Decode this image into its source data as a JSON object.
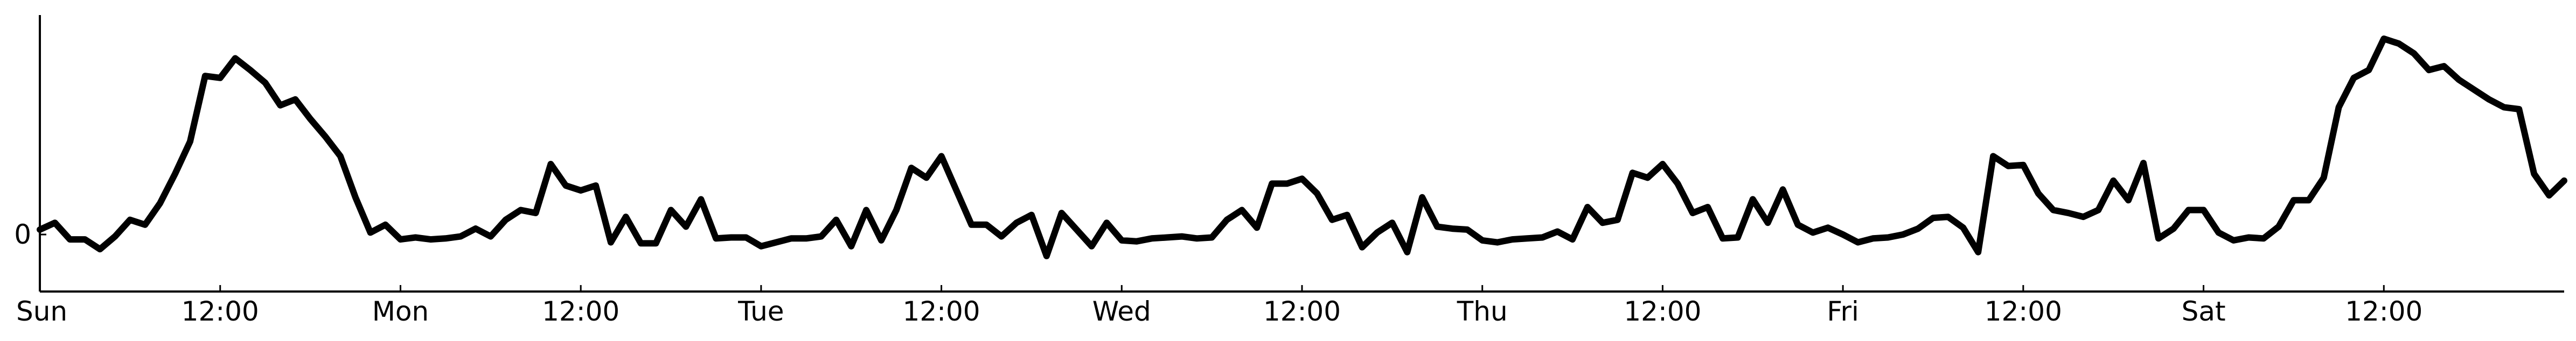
{
  "chart_data": {
    "type": "line",
    "title": "",
    "xlabel": "",
    "ylabel": "",
    "x_ticks": [
      "Sun",
      "12:00",
      "Mon",
      "12:00",
      "Tue",
      "12:00",
      "Wed",
      "12:00",
      "Thu",
      "12:00",
      "Fri",
      "12:00",
      "Sat",
      "12:00"
    ],
    "y_ticks": [
      "0"
    ],
    "grid": false,
    "legend": "none",
    "line_color": "#000000",
    "x_range_hours": [
      0,
      168
    ],
    "series": [
      {
        "x_hours": [
          0,
          1,
          2,
          3,
          4,
          5,
          6,
          7,
          8,
          9,
          10,
          11,
          12,
          13,
          14,
          15,
          16,
          17,
          18,
          19,
          20,
          21,
          22,
          23,
          24,
          25,
          26,
          27,
          28,
          29,
          30,
          31,
          32,
          33,
          34,
          35,
          36,
          37,
          38,
          39,
          40,
          41,
          42,
          43,
          44,
          45,
          46,
          47,
          48,
          49,
          50,
          51,
          52,
          53,
          54,
          55,
          56,
          57,
          58,
          59,
          60,
          61,
          62,
          63,
          64,
          65,
          66,
          67,
          68,
          69,
          70,
          71,
          72,
          73,
          74,
          75,
          76,
          77,
          78,
          79,
          80,
          81,
          82,
          83,
          84,
          85,
          86,
          87,
          88,
          89,
          90,
          91,
          92,
          93,
          94,
          95,
          96,
          97,
          98,
          99,
          100,
          101,
          102,
          103,
          104,
          105,
          106,
          107,
          108,
          109,
          110,
          111,
          112,
          113,
          114,
          115,
          116,
          117,
          118,
          119,
          120,
          121,
          122,
          123,
          124,
          125,
          126,
          127,
          128,
          129,
          130,
          131,
          132,
          133,
          134,
          135,
          136,
          137,
          138,
          139,
          140,
          141,
          142,
          143,
          144,
          145,
          146,
          147,
          148,
          149,
          150,
          151,
          152,
          153,
          154,
          155,
          156,
          157,
          158,
          159,
          160,
          161,
          162,
          163,
          164,
          165,
          166,
          167,
          168
        ],
        "values": [
          0.05,
          0.12,
          -0.05,
          -0.05,
          -0.15,
          -0.02,
          0.15,
          0.1,
          0.32,
          0.62,
          0.95,
          1.62,
          1.6,
          1.8,
          1.68,
          1.55,
          1.32,
          1.38,
          1.18,
          1.0,
          0.8,
          0.38,
          0.02,
          0.1,
          -0.05,
          -0.03,
          -0.05,
          -0.04,
          -0.02,
          0.06,
          -0.02,
          0.15,
          0.25,
          0.22,
          0.72,
          0.5,
          0.45,
          0.5,
          -0.08,
          0.18,
          -0.09,
          -0.09,
          0.25,
          0.08,
          0.36,
          -0.04,
          -0.03,
          -0.03,
          -0.12,
          -0.08,
          -0.04,
          -0.04,
          -0.02,
          0.15,
          -0.12,
          0.25,
          -0.06,
          0.25,
          0.68,
          0.58,
          0.8,
          0.45,
          0.1,
          0.1,
          -0.02,
          0.12,
          0.2,
          -0.22,
          0.22,
          0.05,
          -0.12,
          0.12,
          -0.06,
          -0.07,
          -0.04,
          -0.03,
          -0.02,
          -0.04,
          -0.03,
          0.15,
          0.25,
          0.07,
          0.52,
          0.52,
          0.57,
          0.42,
          0.15,
          0.2,
          -0.13,
          0.02,
          0.12,
          -0.18,
          0.38,
          0.08,
          0.06,
          0.05,
          -0.06,
          -0.08,
          -0.05,
          -0.04,
          -0.03,
          0.03,
          -0.05,
          0.28,
          0.12,
          0.15,
          0.63,
          0.58,
          0.72,
          0.52,
          0.22,
          0.28,
          -0.04,
          -0.03,
          0.36,
          0.12,
          0.46,
          0.1,
          0.02,
          0.07,
          0.0,
          -0.08,
          -0.04,
          -0.03,
          0.0,
          0.06,
          0.17,
          0.18,
          0.07,
          -0.18,
          0.8,
          0.7,
          0.71,
          0.42,
          0.25,
          0.22,
          0.18,
          0.25,
          0.55,
          0.35,
          0.73,
          -0.04,
          0.06,
          0.25,
          0.25,
          0.02,
          -0.06,
          -0.03,
          -0.04,
          0.08,
          0.35,
          0.35,
          0.58,
          1.3,
          1.6,
          1.68,
          2.0,
          1.95,
          1.85,
          1.68,
          1.72,
          1.58,
          1.48,
          1.38,
          1.3,
          1.28,
          0.62,
          0.4,
          0.55
        ]
      }
    ]
  }
}
